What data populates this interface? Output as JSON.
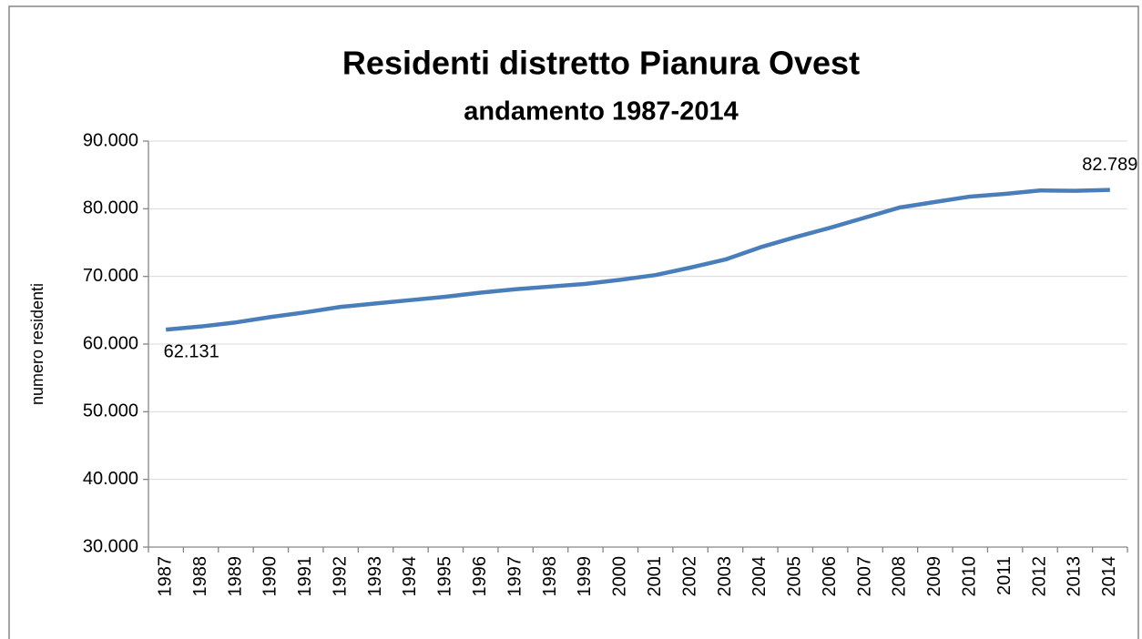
{
  "chart_data": {
    "type": "line",
    "title": "Residenti distretto Pianura Ovest",
    "subtitle": "andamento 1987-2014",
    "y_label": "numero residenti",
    "categories": [
      "1987",
      "1988",
      "1989",
      "1990",
      "1991",
      "1992",
      "1993",
      "1994",
      "1995",
      "1996",
      "1997",
      "1998",
      "1999",
      "2000",
      "2001",
      "2002",
      "2003",
      "2004",
      "2005",
      "2006",
      "2007",
      "2008",
      "2009",
      "2010",
      "2011",
      "2012",
      "2013",
      "2014"
    ],
    "series": [
      {
        "name": "numero residenti",
        "color": "#4a7ebb",
        "values": [
          62131,
          62600,
          63200,
          64000,
          64700,
          65500,
          66000,
          66500,
          67000,
          67600,
          68100,
          68500,
          68900,
          69500,
          70200,
          71300,
          72500,
          74300,
          75800,
          77200,
          78700,
          80200,
          81000,
          81800,
          82200,
          82700,
          82650,
          82789
        ],
        "value_labels": [
          "62.131",
          null,
          null,
          null,
          null,
          null,
          null,
          null,
          null,
          null,
          null,
          null,
          null,
          null,
          null,
          null,
          null,
          null,
          null,
          null,
          null,
          null,
          null,
          null,
          null,
          null,
          null,
          "82.789"
        ]
      }
    ],
    "ylim": [
      30000,
      90000
    ],
    "yticks": [
      {
        "value": 30000,
        "label": "30.000"
      },
      {
        "value": 40000,
        "label": "40.000"
      },
      {
        "value": 50000,
        "label": "50.000"
      },
      {
        "value": 60000,
        "label": "60.000"
      },
      {
        "value": 70000,
        "label": "70.000"
      },
      {
        "value": 80000,
        "label": "80.000"
      },
      {
        "value": 90000,
        "label": "90.000"
      }
    ],
    "grid": true
  }
}
